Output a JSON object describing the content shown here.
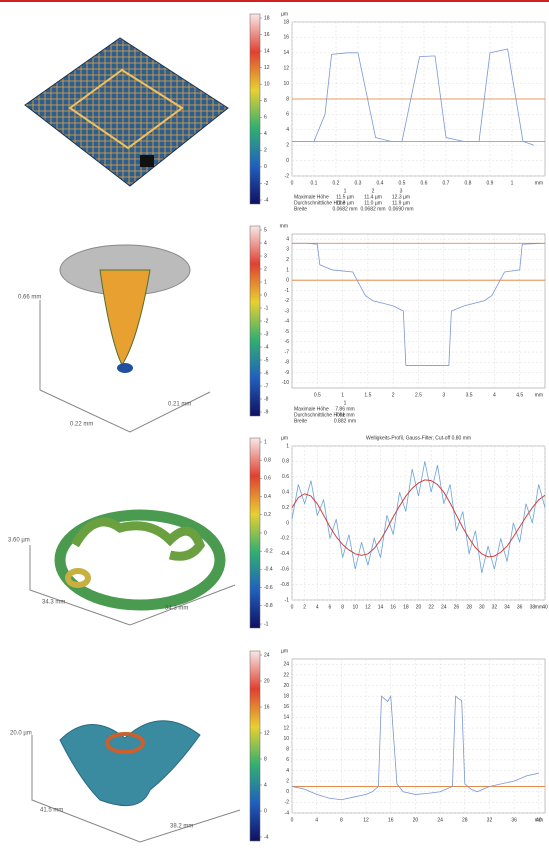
{
  "chart_data": [
    {
      "type": "line",
      "ylabel": "µm",
      "xlabel": "mm",
      "x": [
        0,
        0.05,
        0.1,
        0.15,
        0.18,
        0.25,
        0.3,
        0.38,
        0.45,
        0.5,
        0.58,
        0.65,
        0.7,
        0.78,
        0.85,
        0.9,
        0.98,
        1.05,
        1.1
      ],
      "series": [
        {
          "color": "#7a96d8",
          "values": [
            2.5,
            2.5,
            2.5,
            6,
            13.8,
            14,
            14,
            3,
            2.5,
            2.5,
            13.5,
            13.6,
            3,
            2.5,
            2.5,
            14,
            14.5,
            2.5,
            2
          ]
        }
      ],
      "hlines": [
        8,
        2.5
      ],
      "hline_color": "#e07a30",
      "xlim": [
        0,
        1.15
      ],
      "ylim": [
        -2,
        18
      ],
      "xticks": [
        0,
        0.1,
        0.2,
        0.3,
        0.4,
        0.5,
        0.6,
        0.7,
        0.8,
        0.9,
        1
      ],
      "yticks": [
        -2,
        0,
        2,
        4,
        6,
        8,
        10,
        12,
        14,
        16,
        18
      ],
      "grid": true,
      "colorbar_ticks": [
        -4,
        -2,
        0,
        2,
        4,
        6,
        8,
        10,
        12,
        14,
        16,
        18
      ],
      "stats": {
        "columns": [
          "1",
          "2",
          "3"
        ],
        "rows": [
          [
            "Maximale Höhe",
            "11.5 µm",
            "11.4 µm",
            "12.3 µm"
          ],
          [
            "Durchschnittliche Höhe",
            "11.3 µm",
            "11.0 µm",
            "11.9 µm"
          ],
          [
            "Breite",
            "0.0682 mm",
            "0.0682 mm",
            "0.0690 mm"
          ]
        ]
      }
    },
    {
      "type": "line",
      "ylabel": "mm",
      "xlabel": "mm",
      "x": [
        0,
        0.3,
        0.5,
        0.55,
        0.8,
        1.2,
        1.45,
        1.6,
        2.0,
        2.2,
        2.25,
        3.1,
        3.15,
        3.4,
        3.8,
        3.95,
        4.2,
        4.5,
        4.55,
        5
      ],
      "series": [
        {
          "color": "#7a96d8",
          "values": [
            3.6,
            3.6,
            3.5,
            1.5,
            1,
            0.8,
            -1.5,
            -2,
            -2.5,
            -3,
            -8.3,
            -8.3,
            -3,
            -2.5,
            -2,
            -1.5,
            0.8,
            1,
            3.5,
            3.6
          ]
        }
      ],
      "hlines": [
        3.6,
        0
      ],
      "hline_color": "#e07a30",
      "xlim": [
        0,
        5
      ],
      "ylim": [
        -10.5,
        4.5
      ],
      "xticks": [
        0.5,
        1,
        1.5,
        2,
        2.5,
        3,
        3.5,
        4,
        4.5
      ],
      "yticks": [
        -10,
        -9,
        -8,
        -7,
        -6,
        -5,
        -4,
        -3,
        -2,
        -1,
        0,
        1,
        2,
        3,
        4
      ],
      "grid": true,
      "colorbar_ticks": [
        -9,
        -8,
        -7,
        -6,
        -5,
        -4,
        -3,
        -2,
        -1,
        0,
        1,
        2,
        3,
        4,
        5
      ],
      "stats": {
        "columns": [
          "1"
        ],
        "rows": [
          [
            "Maximale Höhe",
            "7.86 mm"
          ],
          [
            "Durchschnittliche Höhe",
            "7.61 mm"
          ],
          [
            "Breite",
            "0.882 mm"
          ]
        ]
      }
    },
    {
      "type": "line",
      "title": "Welligkeits-Profil, Gauss-Filter, Cut-off 0.80 mm",
      "ylabel": "µm",
      "xlabel": "mm",
      "x": [
        0,
        1,
        2,
        3,
        4,
        5,
        6,
        7,
        8,
        9,
        10,
        11,
        12,
        13,
        14,
        15,
        16,
        17,
        18,
        19,
        20,
        21,
        22,
        23,
        24,
        25,
        26,
        27,
        28,
        29,
        30,
        31,
        32,
        33,
        34,
        35,
        36,
        37,
        38,
        39,
        40
      ],
      "series": [
        {
          "color": "#6aa2dc",
          "values": [
            0.05,
            0.5,
            0.25,
            0.55,
            0.1,
            0.3,
            -0.2,
            0.05,
            -0.45,
            -0.15,
            -0.6,
            -0.25,
            -0.55,
            -0.2,
            -0.45,
            0.1,
            -0.15,
            0.4,
            0.15,
            0.7,
            0.35,
            0.8,
            0.4,
            0.75,
            0.25,
            0.5,
            -0.1,
            0.15,
            -0.4,
            -0.1,
            -0.65,
            -0.3,
            -0.6,
            -0.2,
            -0.5,
            0,
            -0.25,
            0.25,
            0,
            0.5,
            0.2
          ]
        },
        {
          "color": "#d04040",
          "values": [
            0.2,
            0.33,
            0.38,
            0.35,
            0.25,
            0.1,
            -0.05,
            -0.18,
            -0.28,
            -0.35,
            -0.4,
            -0.42,
            -0.4,
            -0.33,
            -0.22,
            -0.08,
            0.08,
            0.22,
            0.35,
            0.45,
            0.52,
            0.56,
            0.55,
            0.5,
            0.4,
            0.26,
            0.1,
            -0.06,
            -0.2,
            -0.32,
            -0.4,
            -0.44,
            -0.43,
            -0.38,
            -0.3,
            -0.18,
            -0.05,
            0.08,
            0.2,
            0.3,
            0.36
          ]
        }
      ],
      "xlim": [
        0,
        40
      ],
      "ylim": [
        -1,
        1
      ],
      "xticks": [
        0,
        2,
        4,
        6,
        8,
        10,
        12,
        14,
        16,
        18,
        20,
        22,
        24,
        26,
        28,
        30,
        32,
        34,
        36,
        38,
        40
      ],
      "yticks": [
        -1,
        -0.8,
        -0.6,
        -0.4,
        -0.2,
        0,
        0.2,
        0.4,
        0.6,
        0.8,
        1
      ],
      "grid": true,
      "colorbar_ticks": [
        -1,
        -0.8,
        -0.6,
        -0.4,
        -0.2,
        0,
        0.2,
        0.4,
        0.6,
        0.8,
        1
      ]
    },
    {
      "type": "line",
      "ylabel": "µm",
      "xlabel": "mm",
      "x": [
        0,
        2,
        4,
        6,
        8,
        10,
        12,
        13,
        14,
        14.5,
        15,
        15.5,
        16,
        17,
        18,
        20,
        22,
        24,
        26,
        26.5,
        27,
        27.5,
        28,
        29,
        30,
        32,
        34,
        36,
        38,
        40
      ],
      "series": [
        {
          "color": "#7a96d8",
          "values": [
            1,
            0.5,
            -0.5,
            -1.2,
            -1.5,
            -1,
            -0.5,
            0,
            1,
            18,
            17.5,
            17,
            18,
            1.5,
            0,
            -0.5,
            -0.3,
            0,
            1,
            18,
            17.5,
            17.2,
            1.5,
            0.5,
            0,
            1,
            1.5,
            2,
            3,
            3.5
          ]
        }
      ],
      "hlines": [
        1
      ],
      "hline_color": "#e07a30",
      "xlim": [
        0,
        41
      ],
      "ylim": [
        -4,
        25
      ],
      "xticks": [
        0,
        4,
        8,
        12,
        16,
        20,
        24,
        28,
        32,
        36,
        40
      ],
      "yticks": [
        -4,
        -2,
        0,
        2,
        4,
        6,
        8,
        10,
        12,
        14,
        16,
        18,
        20,
        22,
        24
      ],
      "grid": true,
      "colorbar_ticks": [
        -4,
        0,
        4,
        8,
        12,
        16,
        20,
        24
      ]
    }
  ],
  "renders": [
    {
      "labels": []
    },
    {
      "labels": [
        "0.66 mm",
        "0.22 mm",
        "0.21 mm"
      ]
    },
    {
      "labels": [
        "3.60 µm",
        "34.3 mm",
        "34.3 mm"
      ]
    },
    {
      "labels": [
        "20.0 µm",
        "41.5 mm",
        "38.2 mm"
      ]
    }
  ]
}
